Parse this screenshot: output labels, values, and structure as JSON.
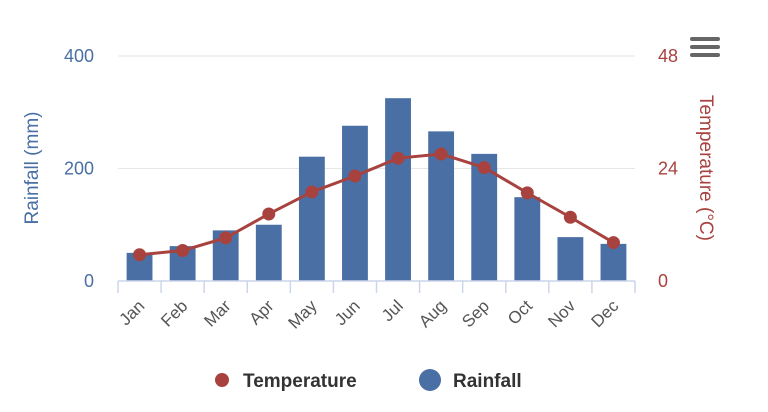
{
  "chart_data": {
    "type": "bar+line",
    "categories": [
      "Jan",
      "Feb",
      "Mar",
      "Apr",
      "May",
      "Jun",
      "Jul",
      "Aug",
      "Sep",
      "Oct",
      "Nov",
      "Dec"
    ],
    "series": [
      {
        "name": "Rainfall",
        "type": "bar",
        "axis": "left",
        "color": "#4a6fa5",
        "values": [
          50,
          62,
          90,
          100,
          221,
          276,
          325,
          266,
          226,
          149,
          78,
          66
        ]
      },
      {
        "name": "Temperature",
        "type": "line",
        "axis": "right",
        "color": "#a8423f",
        "values": [
          5.6,
          6.5,
          9.2,
          14.3,
          19.0,
          22.4,
          26.2,
          27.1,
          24.2,
          18.8,
          13.6,
          8.2
        ]
      }
    ],
    "y_left": {
      "label": "Rainfall (mm)",
      "ticks": [
        "0",
        "200",
        "400"
      ],
      "range": [
        0,
        400
      ],
      "color": "#4a6fa5"
    },
    "y_right": {
      "label": "Temperature (°C)",
      "ticks": [
        "0",
        "24",
        "48"
      ],
      "range": [
        0,
        48
      ],
      "color": "#a8423f"
    },
    "legend": [
      {
        "name": "Temperature",
        "color": "#a8423f"
      },
      {
        "name": "Rainfall",
        "color": "#4a6fa5"
      }
    ],
    "legend_position": "bottom-center"
  },
  "menu_icon": "hamburger-menu-icon"
}
